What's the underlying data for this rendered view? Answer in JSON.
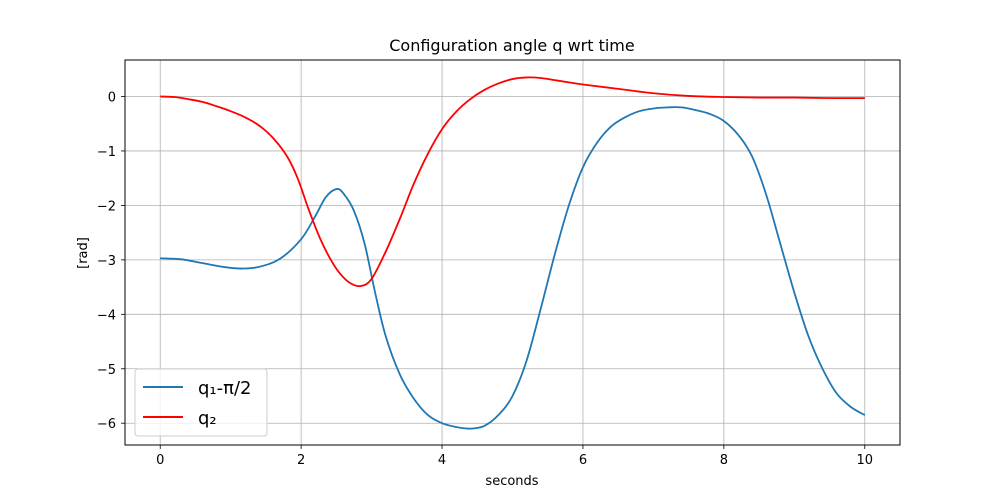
{
  "chart_data": {
    "type": "line",
    "title": "Configuration angle q wrt time",
    "xlabel": "seconds",
    "ylabel": "[rad]",
    "xlim": [
      -0.5,
      10.5
    ],
    "ylim": [
      -6.4,
      0.67
    ],
    "xticks": [
      0,
      2,
      4,
      6,
      8,
      10
    ],
    "xtick_labels": [
      "0",
      "2",
      "4",
      "6",
      "8",
      "10"
    ],
    "yticks": [
      0,
      -1,
      -2,
      -3,
      -4,
      -5,
      -6
    ],
    "ytick_labels": [
      "0",
      "−1",
      "−2",
      "−3",
      "−4",
      "−5",
      "−6"
    ],
    "grid": true,
    "legend_position": "lower-left",
    "series": [
      {
        "name": "q₁-π/2",
        "color": "#1f77b4",
        "x": [
          0,
          0.3,
          0.6,
          0.9,
          1.15,
          1.4,
          1.7,
          2.0,
          2.2,
          2.35,
          2.5,
          2.6,
          2.75,
          2.9,
          3.05,
          3.2,
          3.4,
          3.6,
          3.8,
          4.0,
          4.2,
          4.4,
          4.6,
          4.8,
          5.0,
          5.2,
          5.4,
          5.6,
          5.8,
          6.0,
          6.2,
          6.4,
          6.6,
          6.8,
          7.0,
          7.2,
          7.4,
          7.6,
          7.8,
          8.0,
          8.2,
          8.4,
          8.6,
          8.8,
          9.0,
          9.2,
          9.4,
          9.6,
          9.8,
          10.0
        ],
        "y": [
          -2.97,
          -2.99,
          -3.06,
          -3.13,
          -3.16,
          -3.13,
          -2.98,
          -2.62,
          -2.2,
          -1.85,
          -1.7,
          -1.78,
          -2.1,
          -2.7,
          -3.6,
          -4.4,
          -5.1,
          -5.55,
          -5.85,
          -6.0,
          -6.07,
          -6.1,
          -6.05,
          -5.85,
          -5.5,
          -4.85,
          -3.9,
          -2.9,
          -2.0,
          -1.3,
          -0.85,
          -0.55,
          -0.38,
          -0.27,
          -0.22,
          -0.2,
          -0.2,
          -0.25,
          -0.32,
          -0.45,
          -0.7,
          -1.1,
          -1.8,
          -2.7,
          -3.6,
          -4.4,
          -5.0,
          -5.45,
          -5.7,
          -5.85
        ]
      },
      {
        "name": "q₂",
        "color": "#ff0000",
        "x": [
          0,
          0.2,
          0.4,
          0.6,
          0.8,
          1.0,
          1.2,
          1.4,
          1.6,
          1.8,
          1.95,
          2.1,
          2.25,
          2.4,
          2.55,
          2.7,
          2.85,
          3.0,
          3.2,
          3.4,
          3.6,
          3.8,
          4.0,
          4.2,
          4.4,
          4.6,
          4.8,
          5.0,
          5.2,
          5.4,
          5.6,
          5.8,
          6.0,
          6.5,
          7.0,
          7.5,
          8.0,
          8.5,
          9.0,
          9.5,
          10.0
        ],
        "y": [
          0.0,
          -0.01,
          -0.05,
          -0.1,
          -0.18,
          -0.27,
          -0.38,
          -0.53,
          -0.76,
          -1.1,
          -1.5,
          -2.05,
          -2.55,
          -2.95,
          -3.25,
          -3.43,
          -3.48,
          -3.35,
          -2.85,
          -2.25,
          -1.6,
          -1.05,
          -0.6,
          -0.28,
          -0.05,
          0.12,
          0.24,
          0.32,
          0.35,
          0.34,
          0.3,
          0.26,
          0.22,
          0.14,
          0.06,
          0.01,
          -0.01,
          -0.02,
          -0.02,
          -0.03,
          -0.03
        ]
      }
    ]
  }
}
